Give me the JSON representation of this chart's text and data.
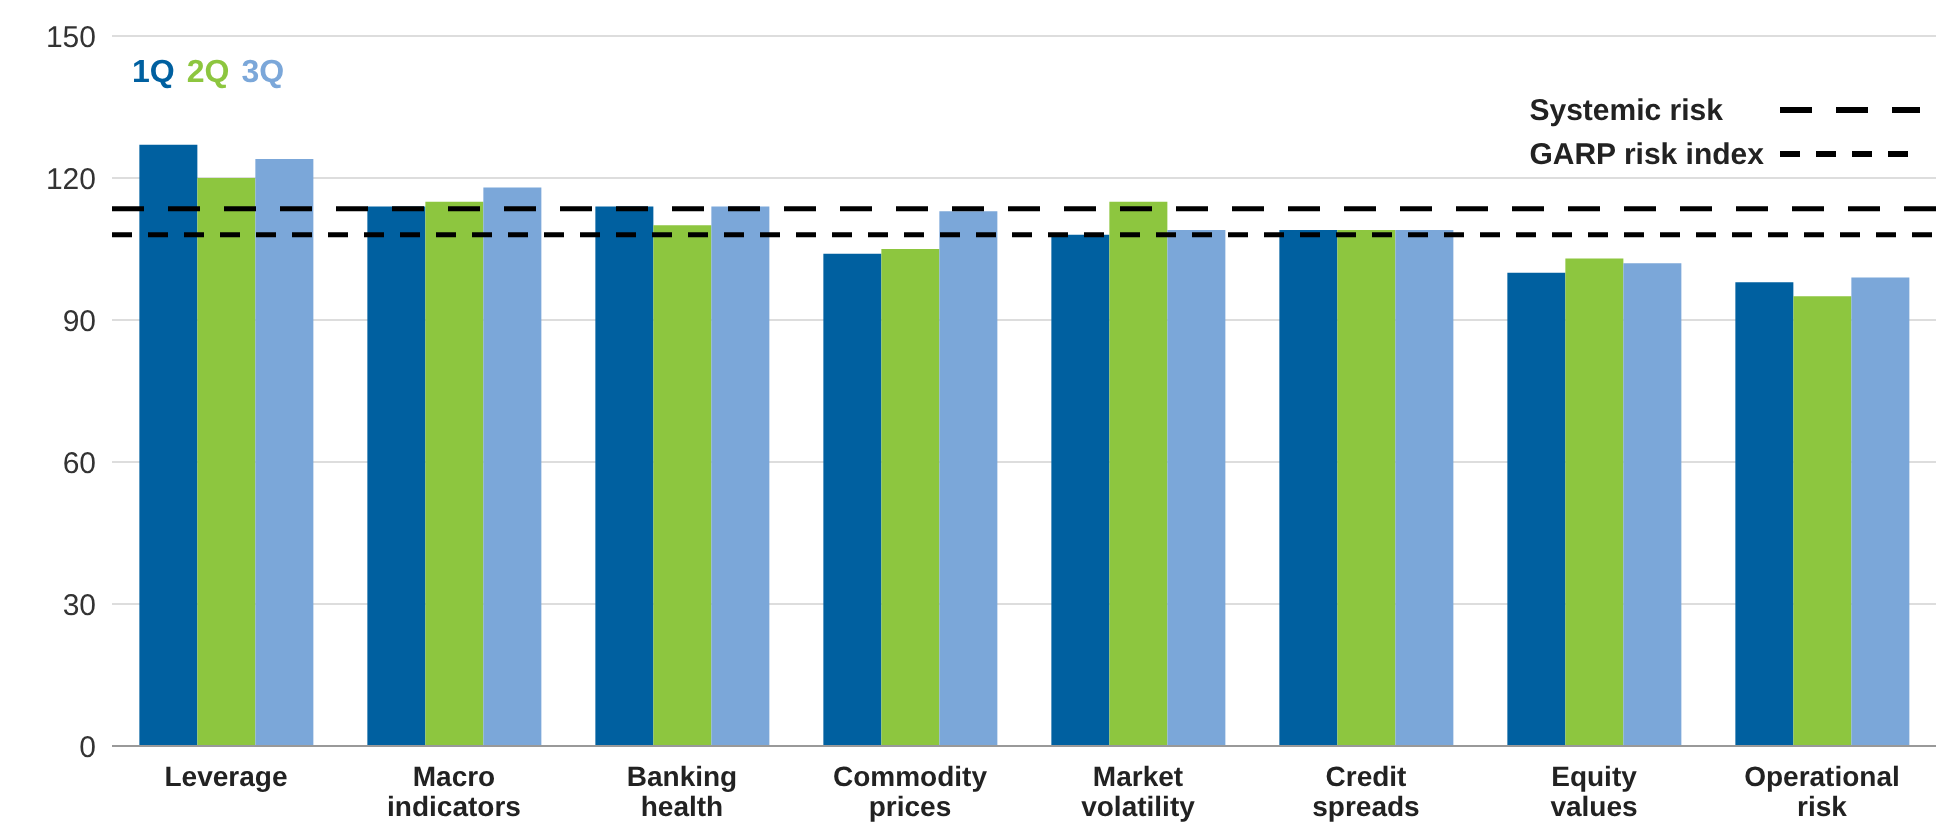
{
  "chart_data": {
    "type": "bar",
    "categories": [
      "Leverage",
      "Macro indicators",
      "Banking health",
      "Commodity prices",
      "Market volatility",
      "Credit spreads",
      "Equity values",
      "Operational risk"
    ],
    "series": [
      {
        "name": "1Q",
        "color": "#0060a0",
        "values": [
          127,
          114,
          114,
          104,
          108,
          109,
          100,
          98
        ]
      },
      {
        "name": "2Q",
        "color": "#8dc63f",
        "values": [
          120,
          115,
          110,
          105,
          115,
          109,
          103,
          95
        ]
      },
      {
        "name": "3Q",
        "color": "#7ba7d9",
        "values": [
          124,
          118,
          114,
          113,
          109,
          109,
          102,
          99
        ]
      }
    ],
    "ylim": [
      0,
      150
    ],
    "yticks": [
      0,
      30,
      60,
      90,
      120,
      150
    ],
    "grid": "y",
    "legend": "top right",
    "ref_lines": [
      {
        "axis": "y",
        "value": 113.5,
        "label": "Systemic risk",
        "color": "#000000",
        "line_style": "dashed"
      },
      {
        "axis": "y",
        "value": 108,
        "label": "GARP risk index",
        "color": "#000000",
        "line_style": "dashed"
      }
    ]
  }
}
